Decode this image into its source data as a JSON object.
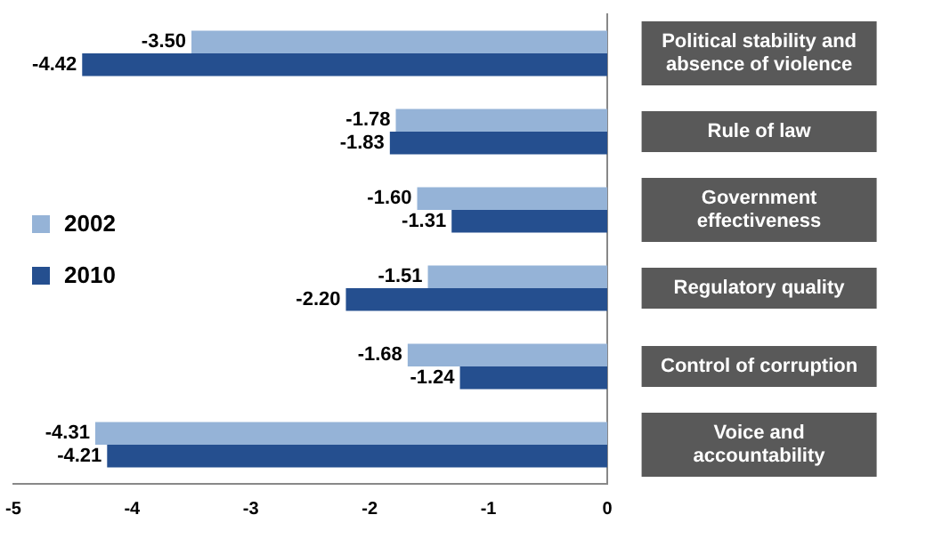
{
  "chart_data": {
    "type": "bar",
    "orientation": "horizontal",
    "categories": [
      "Political stability and absence of violence",
      "Rule of law",
      "Government effectiveness",
      "Regulatory quality",
      "Control of corruption",
      "Voice and accountability"
    ],
    "series": [
      {
        "name": "2002",
        "color": "#95b3d7",
        "values": [
          -3.5,
          -1.78,
          -1.6,
          -1.51,
          -1.68,
          -4.31
        ],
        "value_labels": [
          "-3.50",
          "-1.78",
          "-1.60",
          "-1.51",
          "-1.68",
          "-4.31"
        ]
      },
      {
        "name": "2010",
        "color": "#254f8f",
        "values": [
          -4.42,
          -1.83,
          -1.31,
          -2.2,
          -1.24,
          -4.21
        ],
        "value_labels": [
          "-4.42",
          "-1.83",
          "-1.31",
          "-2.20",
          "-1.24",
          "-4.21"
        ]
      }
    ],
    "xlim": [
      -5,
      0
    ],
    "xticks": [
      -5,
      -4,
      -3,
      -2,
      -1,
      0
    ],
    "grid": false,
    "legend": "left"
  }
}
